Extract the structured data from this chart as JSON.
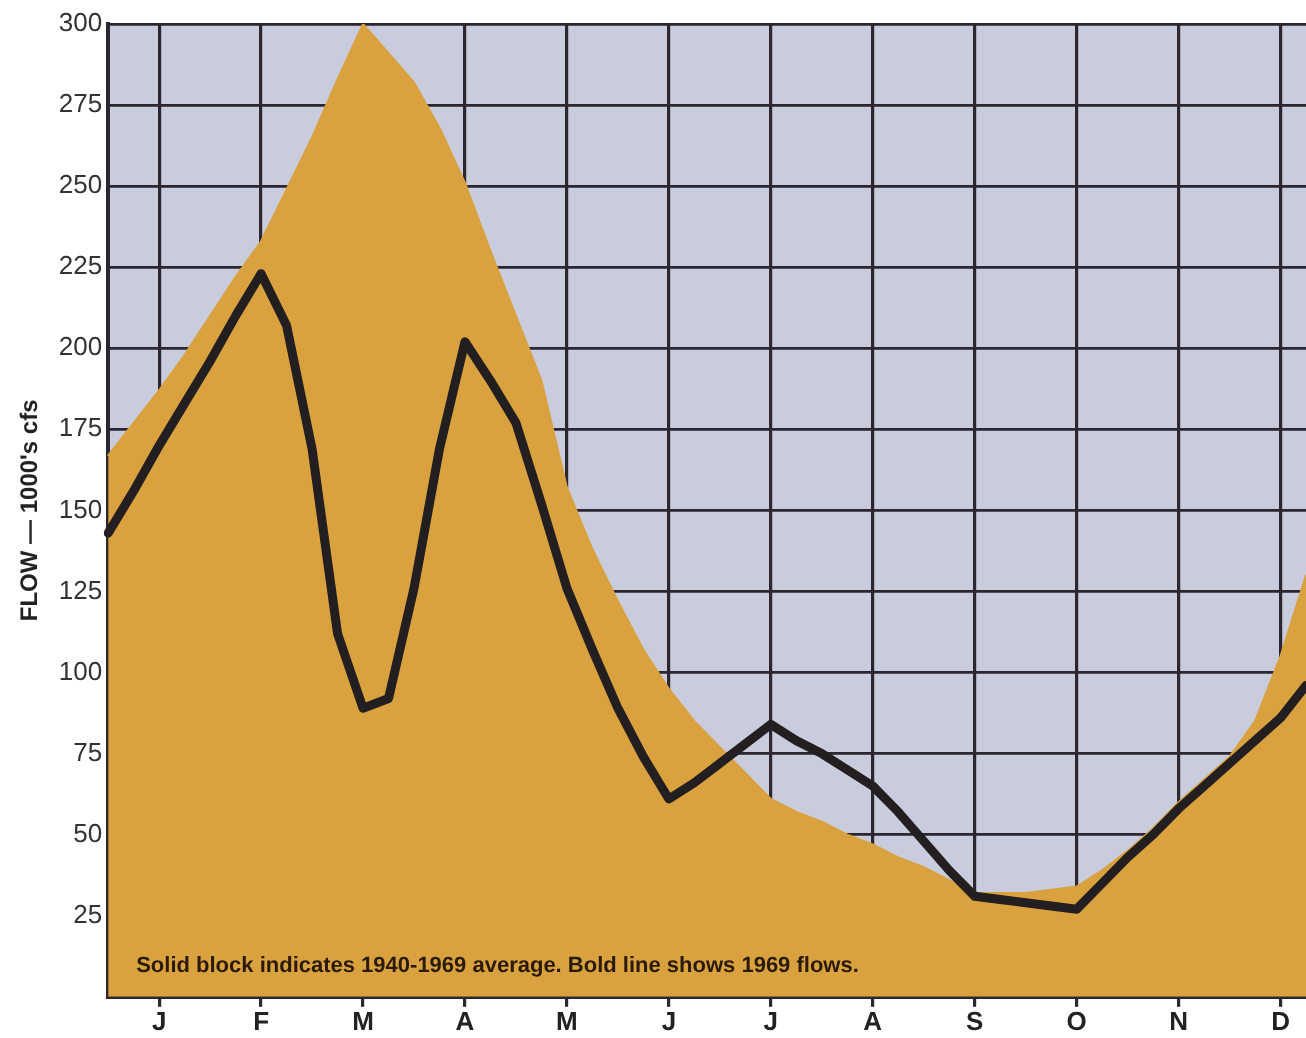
{
  "chart_data": {
    "type": "line",
    "ylabel": "FLOW — 1000's cfs",
    "annotations": [
      "Solid block indicates 1940-1969 average. Bold line shows 1969 flows."
    ],
    "categories": [
      null,
      null,
      "J",
      null,
      null,
      null,
      "F",
      null,
      null,
      null,
      "M",
      null,
      null,
      null,
      "A",
      null,
      null,
      null,
      "M",
      null,
      null,
      null,
      "J",
      null,
      null,
      null,
      "J",
      null,
      null,
      null,
      "A",
      null,
      null,
      null,
      "S",
      null,
      null,
      null,
      "O",
      null,
      null,
      null,
      "N",
      null,
      null,
      null,
      "D",
      null
    ],
    "ylim": [
      0,
      300
    ],
    "yticks": [
      25,
      50,
      75,
      100,
      125,
      150,
      175,
      200,
      225,
      250,
      275,
      300
    ],
    "grid": true,
    "marker": "none",
    "series": [
      {
        "type": "area",
        "color": "#d9a23f",
        "values": [
          167,
          177,
          187,
          198,
          210,
          222,
          233,
          249,
          265,
          283,
          300,
          291,
          282,
          268,
          251,
          230,
          210,
          190,
          157,
          138,
          122,
          107,
          95,
          85,
          77,
          69,
          61,
          57,
          54,
          50,
          47,
          43,
          40,
          36,
          32,
          32,
          32,
          33,
          34,
          39,
          45,
          52,
          60,
          67,
          74,
          85,
          105,
          130
        ]
      },
      {
        "type": "line",
        "color": "#231f20",
        "values": [
          143,
          156,
          170,
          183,
          196,
          210,
          223,
          207,
          169,
          112,
          89,
          92,
          126,
          169,
          202,
          190,
          177,
          152,
          126,
          107,
          89,
          74,
          61,
          66,
          72,
          78,
          84,
          79,
          75,
          70,
          65,
          57,
          48,
          39,
          31,
          30,
          29,
          28,
          27,
          35,
          43,
          50,
          58,
          65,
          72,
          79,
          86,
          96
        ]
      }
    ]
  }
}
